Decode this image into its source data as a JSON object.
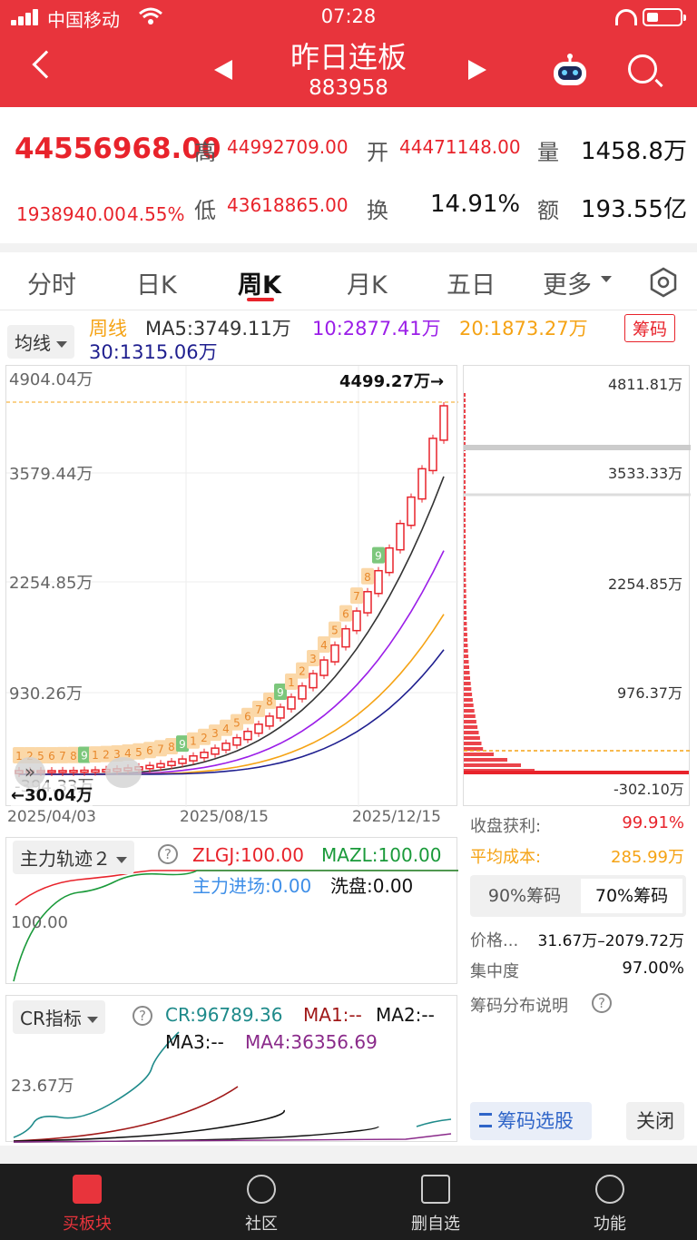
{
  "status_bar": {
    "carrier": "中国移动",
    "time": "07:28"
  },
  "header": {
    "title": "昨日连板",
    "code": "883958"
  },
  "quote": {
    "price": "44556968.00",
    "change": "1938940.00",
    "change_pct": "4.55%",
    "high_label": "高",
    "high": "44992709.00",
    "open_label": "开",
    "open": "44471148.00",
    "low_label": "低",
    "low": "43618865.00",
    "turnover_label": "换",
    "turnover": "14.91%",
    "volume_label": "量",
    "volume": "1458.8万",
    "amount_label": "额",
    "amount": "193.55亿"
  },
  "tabs": [
    {
      "label": "分时"
    },
    {
      "label": "日K"
    },
    {
      "label": "周K",
      "active": true
    },
    {
      "label": "月K"
    },
    {
      "label": "五日"
    },
    {
      "label": "更多"
    }
  ],
  "ma_bar": {
    "selector": "均线",
    "period": "周线",
    "ma5": "MA5:3749.11万",
    "ma10": "10:2877.41万",
    "ma20": "20:1873.27万",
    "ma30": "30:1315.06万",
    "chip_button": "筹码"
  },
  "kline": {
    "y_labels": [
      "4904.04万",
      "3579.44万",
      "2254.85万",
      "930.26万",
      "-394.33万"
    ],
    "max_label": "4499.27万→",
    "min_label": "←30.04万",
    "x_labels": [
      "2025/04/03",
      "2025/08/15",
      "2025/12/15"
    ],
    "colors": {
      "up": "#e8232b",
      "down": "#1a9a3a",
      "ma5": "#333333",
      "ma10": "#9b1ee8",
      "ma20": "#f5a315",
      "ma30": "#1f1f8f"
    },
    "markers": [
      "1",
      "2",
      "5",
      "6",
      "7",
      "8",
      "9",
      "1",
      "2",
      "3",
      "4",
      "5",
      "6",
      "7",
      "8",
      "9",
      "1",
      "2",
      "3",
      "4",
      "5",
      "6",
      "7",
      "8",
      "9",
      "1",
      "2",
      "3",
      "4",
      "5",
      "6",
      "7",
      "8",
      "9"
    ]
  },
  "chips": {
    "y_labels": [
      "4811.81万",
      "3533.33万",
      "2254.85万",
      "976.37万",
      "-302.10万"
    ],
    "profit_label": "收盘获利:",
    "profit": "99.91%",
    "avg_label": "平均成本:",
    "avg": "285.99万",
    "tab_90": "90%筹码",
    "tab_70": "70%筹码",
    "price_label": "价格...",
    "price_range": "31.67万–2079.72万",
    "concentration_label": "集中度",
    "concentration": "97.00%",
    "explain": "筹码分布说明",
    "select_button": "筹码选股",
    "close_button": "关闭"
  },
  "zlgj": {
    "selector": "主力轨迹２",
    "zlgj": "ZLGJ:100.00",
    "mazl": "MAZL:100.00",
    "entry": "主力进场:0.00",
    "wash": "洗盘:0.00",
    "y_label": "100.00"
  },
  "cr": {
    "selector": "CR指标",
    "cr": "CR:96789.36",
    "ma1": "MA1:--",
    "ma2": "MA2:--",
    "ma3": "MA3:--",
    "ma4": "MA4:36356.69",
    "y_label": "23.67万"
  },
  "bottom_nav": [
    {
      "label": "买板块",
      "icon": "buy-icon",
      "active": true
    },
    {
      "label": "社区",
      "icon": "community-icon"
    },
    {
      "label": "删自选",
      "icon": "remove-watchlist-icon"
    },
    {
      "label": "功能",
      "icon": "menu-icon"
    }
  ]
}
